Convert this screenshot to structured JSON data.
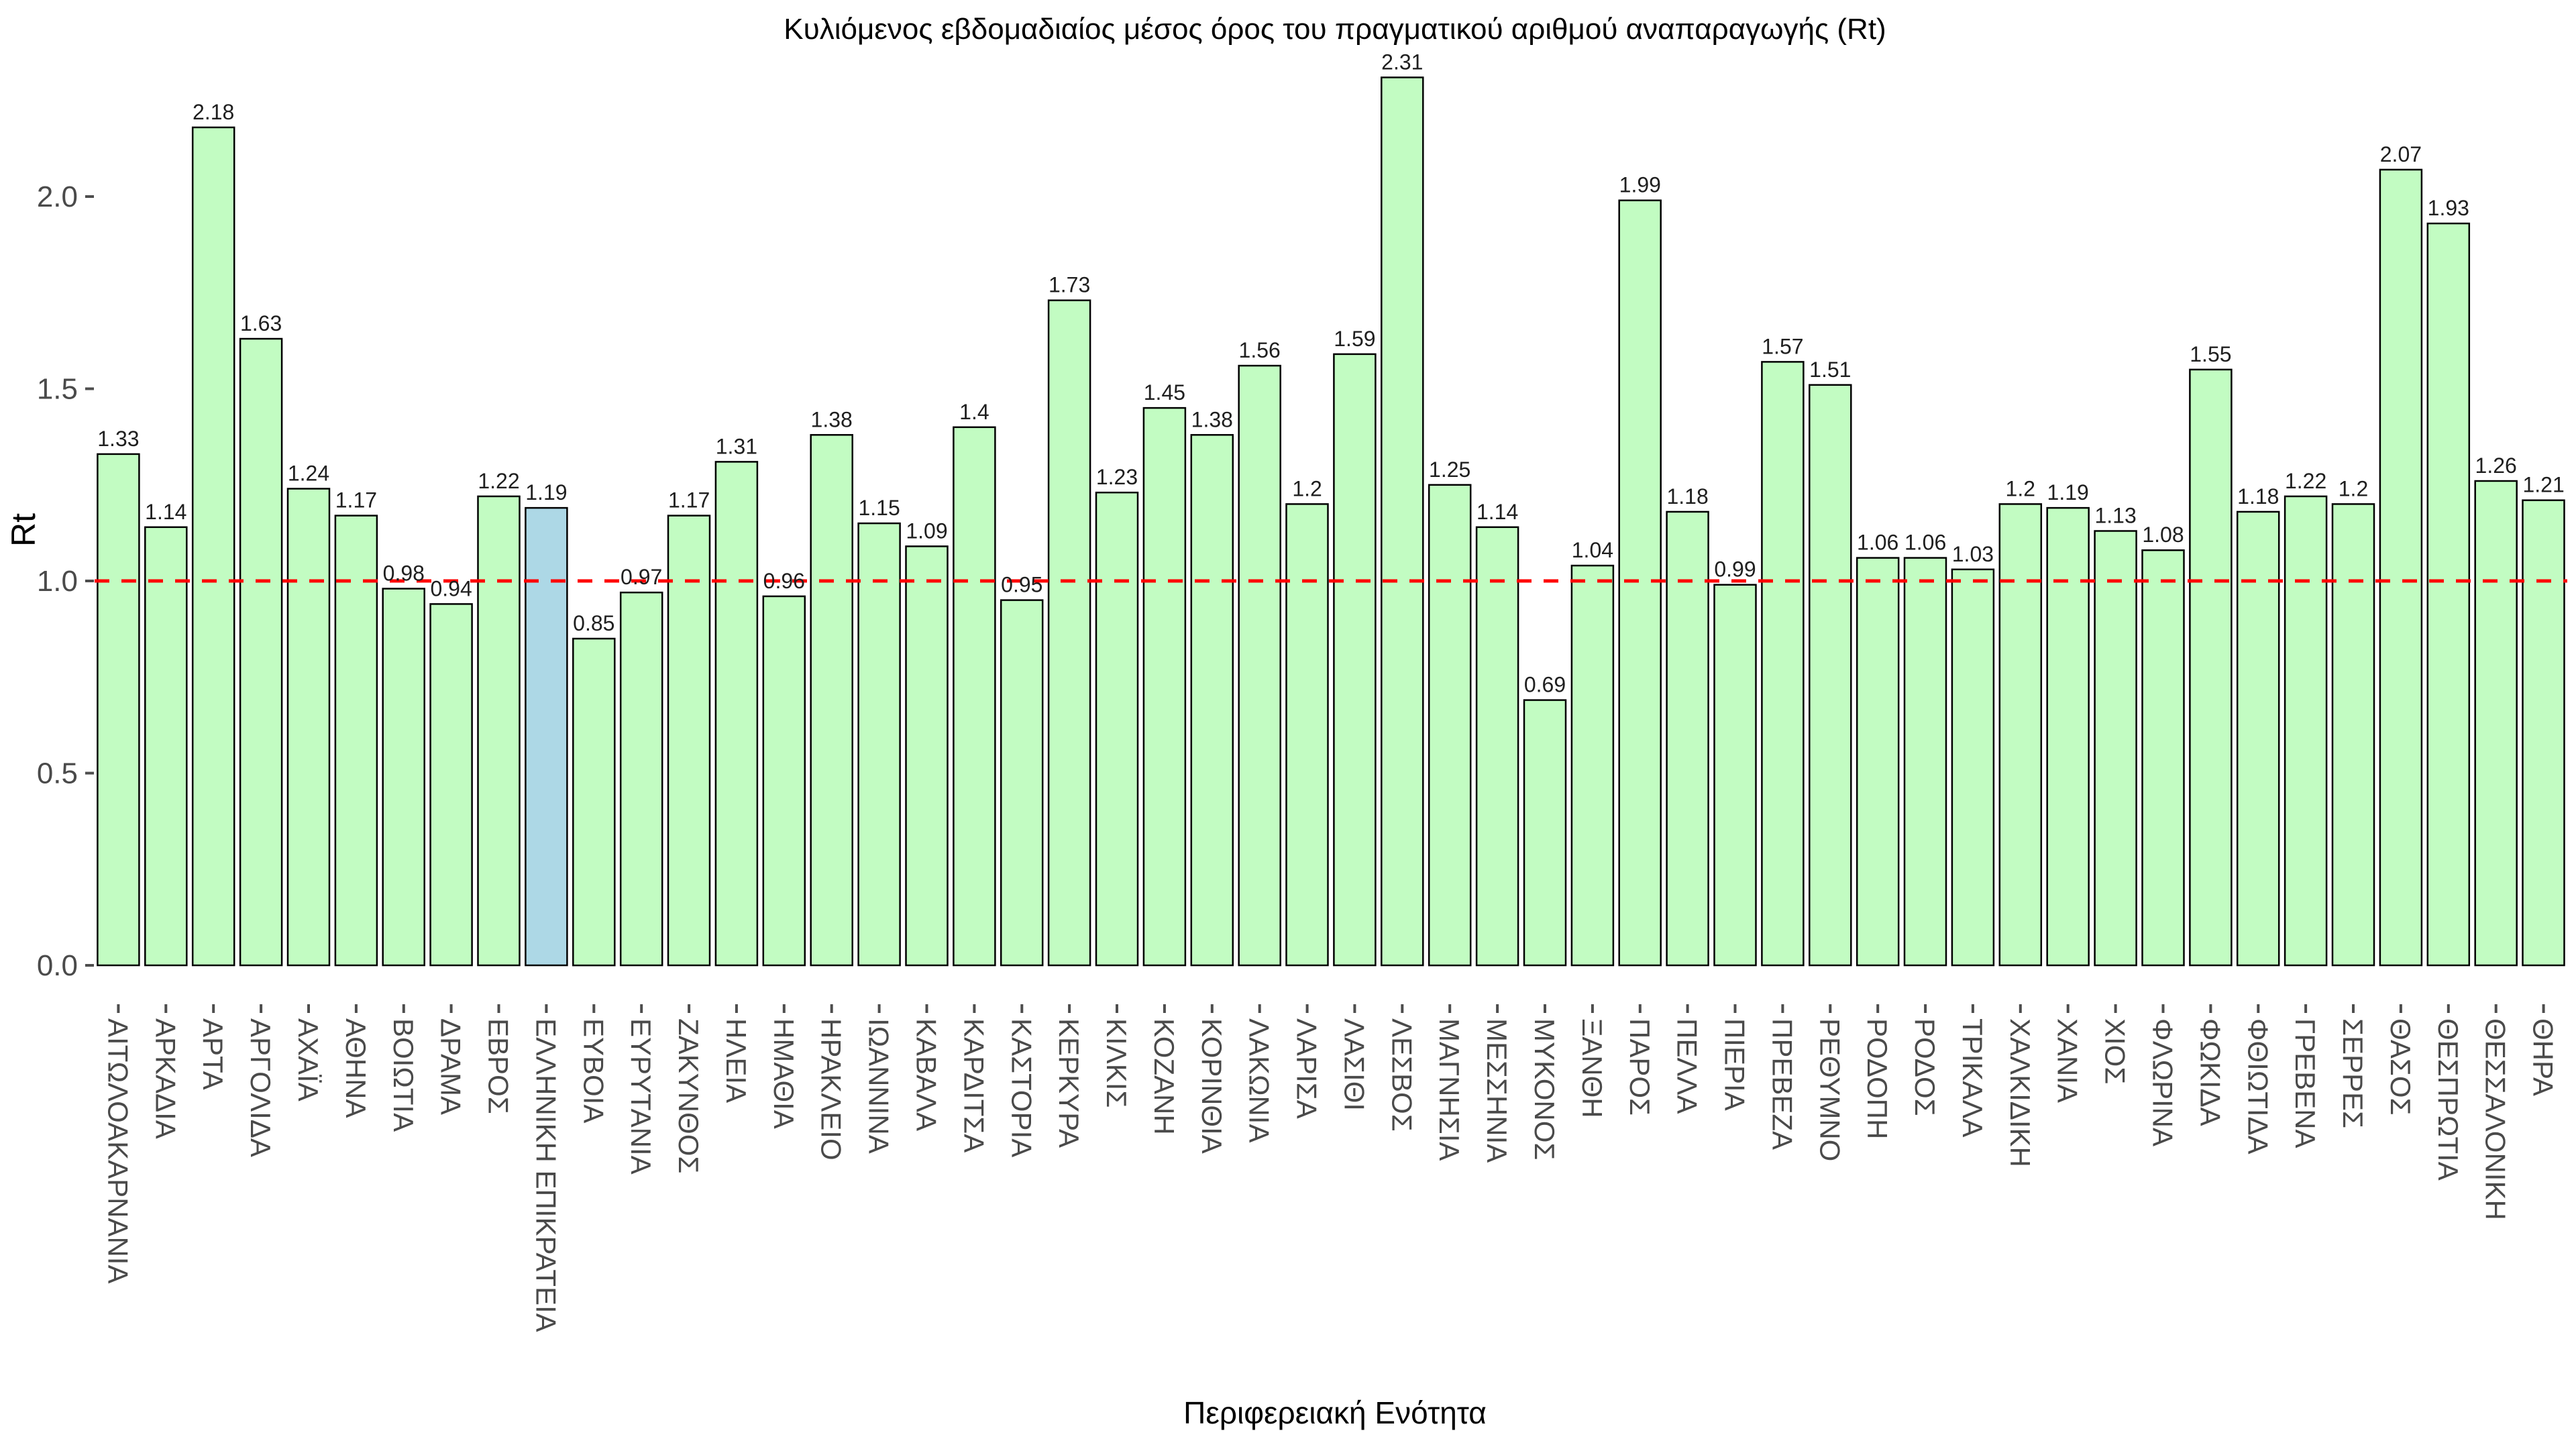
{
  "chart_data": {
    "type": "bar",
    "title": "Κυλιόμενος εβδομαδιαίος μέσος όρος του πραγματικού αριθμού αναπαραγωγής (Rt)",
    "xlabel": "Περιφερειακή Ενότητα",
    "ylabel": "Rt",
    "categories": [
      "ΑΙΤΩΛΟΑΚΑΡΝΑΝΙΑ",
      "ΑΡΚΑΔΙΑ",
      "ΑΡΤΑ",
      "ΑΡΓΟΛΙΔΑ",
      "ΑΧΑΪΑ",
      "ΑΘΗΝΑ",
      "ΒΟΙΩΤΙΑ",
      "ΔΡΑΜΑ",
      "ΕΒΡΟΣ",
      "ΕΛΛΗΝΙΚΗ ΕΠΙΚΡΑΤΕΙΑ",
      "ΕΥΒΟΙΑ",
      "ΕΥΡΥΤΑΝΙΑ",
      "ΖΑΚΥΝΘΟΣ",
      "ΗΛΕΙΑ",
      "ΗΜΑΘΙΑ",
      "ΗΡΑΚΛΕΙΟ",
      "ΙΩΑΝΝΙΝΑ",
      "ΚΑΒΑΛΑ",
      "ΚΑΡΔΙΤΣΑ",
      "ΚΑΣΤΟΡΙΑ",
      "ΚΕΡΚΥΡΑ",
      "ΚΙΛΚΙΣ",
      "ΚΟΖΑΝΗ",
      "ΚΟΡΙΝΘΙΑ",
      "ΛΑΚΩΝΙΑ",
      "ΛΑΡΙΣΑ",
      "ΛΑΣΙΘΙ",
      "ΛΕΣΒΟΣ",
      "ΜΑΓΝΗΣΙΑ",
      "ΜΕΣΣΗΝΙΑ",
      "ΜΥΚΟΝΟΣ",
      "ΞΑΝΘΗ",
      "ΠΑΡΟΣ",
      "ΠΕΛΛΑ",
      "ΠΙΕΡΙΑ",
      "ΠΡΕΒΕΖΑ",
      "ΡΕΘΥΜΝΟ",
      "ΡΟΔΟΠΗ",
      "ΡΟΔΟΣ",
      "ΤΡΙΚΑΛΑ",
      "ΧΑΛΚΙΔΙΚΗ",
      "ΧΑΝΙΑ",
      "ΧΙΟΣ",
      "ΦΛΩΡΙΝΑ",
      "ΦΩΚΙΔΑ",
      "ΦΘΙΩΤΙΔΑ",
      "ΓΡΕΒΕΝΑ",
      "ΣΕΡΡΕΣ",
      "ΘΑΣΟΣ",
      "ΘΕΣΠΡΩΤΙΑ",
      "ΘΕΣΣΑΛΟΝΙΚΗ",
      "ΘΗΡΑ"
    ],
    "values": [
      1.33,
      1.14,
      2.18,
      1.63,
      1.24,
      1.17,
      0.98,
      0.94,
      1.22,
      1.19,
      0.85,
      0.97,
      1.17,
      1.31,
      0.96,
      1.38,
      1.15,
      1.09,
      1.4,
      0.95,
      1.73,
      1.23,
      1.45,
      1.38,
      1.56,
      1.2,
      1.59,
      2.31,
      1.25,
      1.14,
      0.69,
      1.04,
      1.99,
      1.18,
      0.99,
      1.57,
      1.51,
      1.06,
      1.06,
      1.03,
      1.2,
      1.19,
      1.13,
      1.08,
      1.55,
      1.18,
      1.22,
      1.2,
      2.07,
      1.93,
      1.26,
      1.21
    ],
    "value_labels": [
      "1.33",
      "1.14",
      "2.18",
      "1.63",
      "1.24",
      "1.17",
      "0.98",
      "0.94",
      "1.22",
      "1.19",
      "0.85",
      "0.97",
      "1.17",
      "1.31",
      "0.96",
      "1.38",
      "1.15",
      "1.09",
      "1.4",
      "0.95",
      "1.73",
      "1.23",
      "1.45",
      "1.38",
      "1.56",
      "1.2",
      "1.59",
      "2.31",
      "1.25",
      "1.14",
      "0.69",
      "1.04",
      "1.99",
      "1.18",
      "0.99",
      "1.57",
      "1.51",
      "1.06",
      "1.06",
      "1.03",
      "1.2",
      "1.19",
      "1.13",
      "1.08",
      "1.55",
      "1.18",
      "1.22",
      "1.2",
      "2.07",
      "1.93",
      "1.26",
      "1.21"
    ],
    "highlight": {
      "category": "ΕΛΛΗΝΙΚΗ ΕΠΙΚΡΑΤΕΙΑ",
      "index": 9,
      "value": 1.19
    },
    "yticks": {
      "values": [
        0.0,
        0.5,
        1.0,
        1.5,
        2.0
      ],
      "labels": [
        "0.0",
        "0.5",
        "1.0",
        "1.5",
        "2.0"
      ]
    },
    "ylim": [
      0,
      2.42
    ],
    "grid": false,
    "legend": false,
    "reference_line": {
      "value": 1.0,
      "style": "dashed",
      "color": "#ff0000"
    },
    "colors": {
      "bar_fill": "#c2fcc2",
      "bar_edge": "#000000",
      "highlight_fill": "#add8e6",
      "reference_line": "#ff0000",
      "tick_text": "#4a4a4a",
      "tick_mark": "#4d4d4d",
      "value_text": "#1f1f1f",
      "background": "#ffffff"
    }
  }
}
